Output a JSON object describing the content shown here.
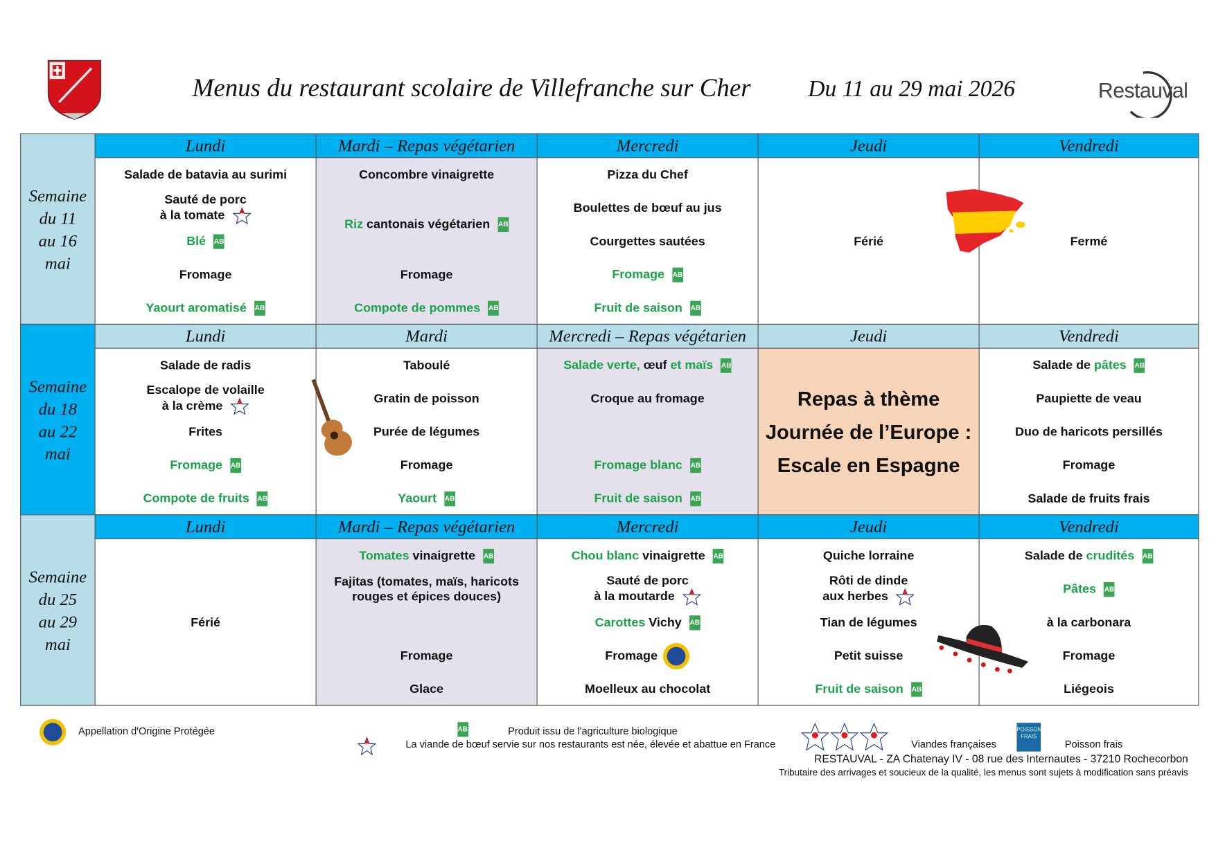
{
  "header": {
    "title": "Menus du restaurant scolaire de Villefranche sur Cher",
    "dates": "Du 11 au 29 mai 2026",
    "logo_text": "Restauval"
  },
  "colors": {
    "header_bright": "#00b0f0",
    "header_light": "#b7dde8",
    "vegetarian_bg": "#e4e0ec",
    "theme_bg": "#f8d5b8",
    "bio_green": "#1aa34a"
  },
  "weeks": [
    {
      "label": "Semaine\ndu 11\nau 16\nmai",
      "days": [
        {
          "name": "Lundi",
          "veg": false,
          "items": [
            {
              "parts": [
                {
                  "t": "Salade de batavia au surimi"
                }
              ]
            },
            {
              "parts": [
                {
                  "t": "Sauté de porc\nà la tomate"
                }
              ],
              "icon": "label-icon"
            },
            {
              "parts": [
                {
                  "t": "Blé",
                  "g": true
                }
              ],
              "icon": "bio-icon"
            },
            {
              "parts": [
                {
                  "t": "Fromage"
                }
              ]
            },
            {
              "parts": [
                {
                  "t": "Yaourt aromatisé",
                  "g": true
                }
              ],
              "icon": "bio-icon"
            }
          ]
        },
        {
          "name": "Mardi – Repas végétarien",
          "veg": true,
          "items": [
            {
              "parts": [
                {
                  "t": "Concombre vinaigrette"
                }
              ]
            },
            {
              "parts": [
                {
                  "t": "Riz",
                  "g": true
                },
                {
                  "t": " cantonais végétarien"
                }
              ],
              "icon": "bio-icon",
              "shift": 0.5
            },
            null,
            {
              "parts": [
                {
                  "t": "Fromage"
                }
              ]
            },
            {
              "parts": [
                {
                  "t": "Compote de pommes",
                  "g": true
                }
              ],
              "icon": "bio-icon"
            }
          ]
        },
        {
          "name": "Mercredi",
          "veg": false,
          "items": [
            {
              "parts": [
                {
                  "t": "Pizza du Chef"
                }
              ]
            },
            {
              "parts": [
                {
                  "t": "Boulettes de bœuf au jus"
                }
              ]
            },
            {
              "parts": [
                {
                  "t": "Courgettes sautées"
                }
              ]
            },
            {
              "parts": [
                {
                  "t": "Fromage",
                  "g": true
                }
              ],
              "icon": "bio-icon"
            },
            {
              "parts": [
                {
                  "t": "Fruit de saison",
                  "g": true
                }
              ],
              "icon": "bio-icon"
            }
          ]
        },
        {
          "name": "Jeudi",
          "veg": false,
          "items": [
            null,
            null,
            {
              "parts": [
                {
                  "t": "Férié"
                }
              ]
            },
            null,
            null
          ]
        },
        {
          "name": "Vendredi",
          "veg": false,
          "items": [
            null,
            null,
            {
              "parts": [
                {
                  "t": "Fermé"
                }
              ]
            },
            null,
            null
          ]
        }
      ]
    },
    {
      "label": "Semaine\ndu 18\nau 22\nmai",
      "days": [
        {
          "name": "Lundi",
          "veg": false,
          "items": [
            {
              "parts": [
                {
                  "t": "Salade de radis"
                }
              ]
            },
            {
              "parts": [
                {
                  "t": "Escalope de volaille\nà la crème"
                }
              ],
              "icon": "label-icon"
            },
            {
              "parts": [
                {
                  "t": "Frites"
                }
              ]
            },
            {
              "parts": [
                {
                  "t": "Fromage",
                  "g": true
                }
              ],
              "icon": "bio-icon"
            },
            {
              "parts": [
                {
                  "t": "Compote de fruits",
                  "g": true
                }
              ],
              "icon": "bio-icon"
            }
          ]
        },
        {
          "name": "Mardi",
          "veg": false,
          "items": [
            {
              "parts": [
                {
                  "t": "Taboulé"
                }
              ]
            },
            {
              "parts": [
                {
                  "t": "Gratin de poisson"
                }
              ]
            },
            {
              "parts": [
                {
                  "t": "Purée de légumes"
                }
              ]
            },
            {
              "parts": [
                {
                  "t": "Fromage"
                }
              ]
            },
            {
              "parts": [
                {
                  "t": "Yaourt",
                  "g": true
                }
              ],
              "icon": "bio-icon"
            }
          ]
        },
        {
          "name": "Mercredi – Repas végétarien",
          "veg": true,
          "items": [
            {
              "parts": [
                {
                  "t": "Salade verte,",
                  "g": true
                },
                {
                  "t": " œuf "
                },
                {
                  "t": "et maïs",
                  "g": true
                }
              ],
              "icon": "bio-icon"
            },
            {
              "parts": [
                {
                  "t": "Croque au fromage"
                }
              ]
            },
            null,
            {
              "parts": [
                {
                  "t": "Fromage blanc",
                  "g": true
                }
              ],
              "icon": "bio-icon"
            },
            {
              "parts": [
                {
                  "t": "Fruit de saison",
                  "g": true
                }
              ],
              "icon": "bio-icon"
            }
          ]
        },
        {
          "name": "Jeudi",
          "veg": false,
          "theme": [
            "Repas à thème",
            "Journée de l’Europe :",
            "Escale en Espagne"
          ]
        },
        {
          "name": "Vendredi",
          "veg": false,
          "items": [
            {
              "parts": [
                {
                  "t": "Salade de "
                },
                {
                  "t": "pâtes",
                  "g": true
                }
              ],
              "icon": "bio-icon"
            },
            {
              "parts": [
                {
                  "t": "Paupiette de veau"
                }
              ]
            },
            {
              "parts": [
                {
                  "t": "Duo de haricots persillés"
                }
              ]
            },
            {
              "parts": [
                {
                  "t": "Fromage"
                }
              ]
            },
            {
              "parts": [
                {
                  "t": "Salade de fruits frais"
                }
              ]
            }
          ]
        }
      ]
    },
    {
      "label": "Semaine\ndu 25\nau 29\nmai",
      "days": [
        {
          "name": "Lundi",
          "veg": false,
          "items": [
            null,
            null,
            {
              "parts": [
                {
                  "t": "Férié"
                }
              ]
            },
            null,
            null
          ]
        },
        {
          "name": "Mardi – Repas végétarien",
          "veg": true,
          "items": [
            {
              "parts": [
                {
                  "t": "Tomates",
                  "g": true
                },
                {
                  "t": " vinaigrette"
                }
              ],
              "icon": "bio-icon"
            },
            {
              "parts": [
                {
                  "t": "Fajitas (tomates, maïs, haricots\nrouges et épices douces)"
                }
              ]
            },
            null,
            {
              "parts": [
                {
                  "t": "Fromage"
                }
              ]
            },
            {
              "parts": [
                {
                  "t": "Glace"
                }
              ]
            }
          ]
        },
        {
          "name": "Mercredi",
          "veg": false,
          "items": [
            {
              "parts": [
                {
                  "t": "Chou blanc",
                  "g": true
                },
                {
                  "t": " vinaigrette"
                }
              ],
              "icon": "bio-icon"
            },
            {
              "parts": [
                {
                  "t": "Sauté de porc\nà la moutarde"
                }
              ],
              "icon": "label-icon"
            },
            {
              "parts": [
                {
                  "t": "Carottes",
                  "g": true
                },
                {
                  "t": " Vichy"
                }
              ],
              "icon": "bio-icon"
            },
            {
              "parts": [
                {
                  "t": "Fromage"
                }
              ],
              "icon": "aop-icon"
            },
            {
              "parts": [
                {
                  "t": "Moelleux au chocolat"
                }
              ]
            }
          ]
        },
        {
          "name": "Jeudi",
          "veg": false,
          "items": [
            {
              "parts": [
                {
                  "t": "Quiche lorraine"
                }
              ]
            },
            {
              "parts": [
                {
                  "t": "Rôti de dinde\naux herbes"
                }
              ],
              "icon": "label-icon"
            },
            {
              "parts": [
                {
                  "t": "Tian de légumes"
                }
              ]
            },
            {
              "parts": [
                {
                  "t": "Petit suisse"
                }
              ]
            },
            {
              "parts": [
                {
                  "t": "Fruit de saison",
                  "g": true
                }
              ],
              "icon": "bio-icon"
            }
          ]
        },
        {
          "name": "Vendredi",
          "veg": false,
          "items": [
            {
              "parts": [
                {
                  "t": "Salade de "
                },
                {
                  "t": "crudités",
                  "g": true
                }
              ],
              "icon": "bio-icon"
            },
            {
              "parts": [
                {
                  "t": "Pâtes",
                  "g": true
                }
              ],
              "icon": "bio-icon"
            },
            {
              "parts": [
                {
                  "t": "à la carbonara"
                }
              ]
            },
            {
              "parts": [
                {
                  "t": "Fromage"
                }
              ]
            },
            {
              "parts": [
                {
                  "t": "Liégeois"
                }
              ]
            }
          ]
        }
      ]
    }
  ],
  "footer": {
    "aop_label": "Appellation d'Origine Protégée",
    "bio_label": "Produit issu de l'agriculture biologique",
    "beef_label": "La viande de bœuf servie sur nos restaurants est née, élevée et abattue en France",
    "meat_label": "Viandes françaises",
    "fish_label": "Poisson frais",
    "fish_logo_text": "POISSON FRAIS",
    "address": "RESTAUVAL - ZA Chatenay IV - 08 rue des Internautes - 37210 Rochecorbon",
    "disclaimer": "Tributaire des arrivages et soucieux de la qualité, les menus sont sujets à modification sans préavis"
  }
}
